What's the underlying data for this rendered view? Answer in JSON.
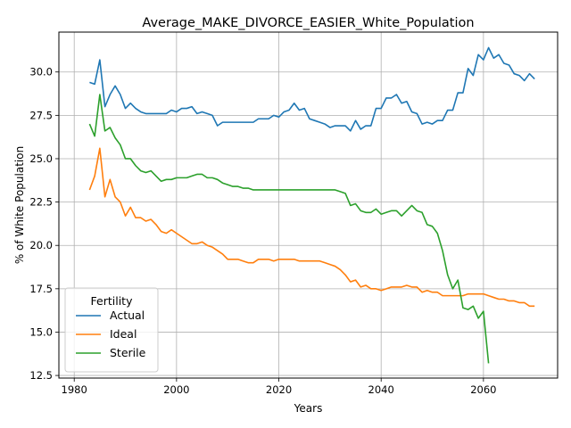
{
  "chart_data": {
    "type": "line",
    "title": "Average_MAKE_DIVORCE_EASIER_White_Population",
    "xlabel": "Years",
    "ylabel": "% of White Population",
    "xlim": [
      1977,
      2074.5
    ],
    "ylim": [
      12.35,
      32.3
    ],
    "xticks": [
      1980,
      2000,
      2020,
      2040,
      2060
    ],
    "xtick_labels": [
      "1980",
      "2000",
      "2020",
      "2040",
      "2060"
    ],
    "yticks": [
      12.5,
      15.0,
      17.5,
      20.0,
      22.5,
      25.0,
      27.5,
      30.0
    ],
    "ytick_labels": [
      "12.5",
      "15.0",
      "17.5",
      "20.0",
      "22.5",
      "25.0",
      "27.5",
      "30.0"
    ],
    "grid": true,
    "legend": {
      "title": "Fertility",
      "position": "lower-left"
    },
    "series": [
      {
        "name": "Actual",
        "color": "#1f77b4",
        "x": [
          1983,
          1984,
          1985,
          1986,
          1987,
          1988,
          1989,
          1990,
          1991,
          1992,
          1993,
          1994,
          1995,
          1996,
          1997,
          1998,
          1999,
          2000,
          2001,
          2002,
          2003,
          2004,
          2005,
          2006,
          2007,
          2008,
          2009,
          2010,
          2011,
          2012,
          2013,
          2014,
          2015,
          2016,
          2017,
          2018,
          2019,
          2020,
          2021,
          2022,
          2023,
          2024,
          2025,
          2026,
          2027,
          2028,
          2029,
          2030,
          2031,
          2032,
          2033,
          2034,
          2035,
          2036,
          2037,
          2038,
          2039,
          2040,
          2041,
          2042,
          2043,
          2044,
          2045,
          2046,
          2047,
          2048,
          2049,
          2050,
          2051,
          2052,
          2053,
          2054,
          2055,
          2056,
          2057,
          2058,
          2059,
          2060,
          2061,
          2062,
          2063,
          2064,
          2065,
          2066,
          2067,
          2068,
          2069,
          2070
        ],
        "y": [
          29.4,
          29.3,
          30.7,
          28.0,
          28.7,
          29.2,
          28.7,
          27.9,
          28.2,
          27.9,
          27.7,
          27.6,
          27.6,
          27.6,
          27.6,
          27.6,
          27.8,
          27.7,
          27.9,
          27.9,
          28.0,
          27.6,
          27.7,
          27.6,
          27.5,
          26.9,
          27.1,
          27.1,
          27.1,
          27.1,
          27.1,
          27.1,
          27.1,
          27.3,
          27.3,
          27.3,
          27.5,
          27.4,
          27.7,
          27.8,
          28.2,
          27.8,
          27.9,
          27.3,
          27.2,
          27.1,
          27.0,
          26.8,
          26.9,
          26.9,
          26.9,
          26.6,
          27.2,
          26.7,
          26.9,
          26.9,
          27.9,
          27.9,
          28.5,
          28.5,
          28.7,
          28.2,
          28.3,
          27.7,
          27.6,
          27.0,
          27.1,
          27.0,
          27.2,
          27.2,
          27.8,
          27.8,
          28.8,
          28.8,
          30.2,
          29.8,
          31.0,
          30.7,
          31.4,
          30.8,
          31.0,
          30.5,
          30.4,
          29.9,
          29.8,
          29.5,
          29.9,
          29.6
        ]
      },
      {
        "name": "Ideal",
        "color": "#ff7f0e",
        "x": [
          1983,
          1984,
          1985,
          1986,
          1987,
          1988,
          1989,
          1990,
          1991,
          1992,
          1993,
          1994,
          1995,
          1996,
          1997,
          1998,
          1999,
          2000,
          2001,
          2002,
          2003,
          2004,
          2005,
          2006,
          2007,
          2008,
          2009,
          2010,
          2011,
          2012,
          2013,
          2014,
          2015,
          2016,
          2017,
          2018,
          2019,
          2020,
          2021,
          2022,
          2023,
          2024,
          2025,
          2026,
          2027,
          2028,
          2029,
          2030,
          2031,
          2032,
          2033,
          2034,
          2035,
          2036,
          2037,
          2038,
          2039,
          2040,
          2041,
          2042,
          2043,
          2044,
          2045,
          2046,
          2047,
          2048,
          2049,
          2050,
          2051,
          2052,
          2053,
          2054,
          2055,
          2056,
          2057,
          2058,
          2059,
          2060,
          2061,
          2062,
          2063,
          2064,
          2065,
          2066,
          2067,
          2068,
          2069,
          2070
        ],
        "y": [
          23.2,
          24.0,
          25.6,
          22.8,
          23.8,
          22.8,
          22.5,
          21.7,
          22.2,
          21.6,
          21.6,
          21.4,
          21.5,
          21.2,
          20.8,
          20.7,
          20.9,
          20.7,
          20.5,
          20.3,
          20.1,
          20.1,
          20.2,
          20.0,
          19.9,
          19.7,
          19.5,
          19.2,
          19.2,
          19.2,
          19.1,
          19.0,
          19.0,
          19.2,
          19.2,
          19.2,
          19.1,
          19.2,
          19.2,
          19.2,
          19.2,
          19.1,
          19.1,
          19.1,
          19.1,
          19.1,
          19.0,
          18.9,
          18.8,
          18.6,
          18.3,
          17.9,
          18.0,
          17.6,
          17.7,
          17.5,
          17.5,
          17.4,
          17.5,
          17.6,
          17.6,
          17.6,
          17.7,
          17.6,
          17.6,
          17.3,
          17.4,
          17.3,
          17.3,
          17.1,
          17.1,
          17.1,
          17.1,
          17.1,
          17.2,
          17.2,
          17.2,
          17.2,
          17.1,
          17.0,
          16.9,
          16.9,
          16.8,
          16.8,
          16.7,
          16.7,
          16.5,
          16.5
        ]
      },
      {
        "name": "Sterile",
        "color": "#2ca02c",
        "x": [
          1983,
          1984,
          1985,
          1986,
          1987,
          1988,
          1989,
          1990,
          1991,
          1992,
          1993,
          1994,
          1995,
          1996,
          1997,
          1998,
          1999,
          2000,
          2001,
          2002,
          2003,
          2004,
          2005,
          2006,
          2007,
          2008,
          2009,
          2010,
          2011,
          2012,
          2013,
          2014,
          2015,
          2016,
          2017,
          2018,
          2019,
          2020,
          2021,
          2022,
          2023,
          2024,
          2025,
          2026,
          2027,
          2028,
          2029,
          2030,
          2031,
          2032,
          2033,
          2034,
          2035,
          2036,
          2037,
          2038,
          2039,
          2040,
          2041,
          2042,
          2043,
          2044,
          2045,
          2046,
          2047,
          2048,
          2049,
          2050,
          2051,
          2052,
          2053,
          2054,
          2055,
          2056,
          2057,
          2058,
          2059,
          2060,
          2061
        ],
        "y": [
          27.0,
          26.3,
          28.7,
          26.6,
          26.8,
          26.2,
          25.8,
          25.0,
          25.0,
          24.6,
          24.3,
          24.2,
          24.3,
          24.0,
          23.7,
          23.8,
          23.8,
          23.9,
          23.9,
          23.9,
          24.0,
          24.1,
          24.1,
          23.9,
          23.9,
          23.8,
          23.6,
          23.5,
          23.4,
          23.4,
          23.3,
          23.3,
          23.2,
          23.2,
          23.2,
          23.2,
          23.2,
          23.2,
          23.2,
          23.2,
          23.2,
          23.2,
          23.2,
          23.2,
          23.2,
          23.2,
          23.2,
          23.2,
          23.2,
          23.1,
          23.0,
          22.3,
          22.4,
          22.0,
          21.9,
          21.9,
          22.1,
          21.8,
          21.9,
          22.0,
          22.0,
          21.7,
          22.0,
          22.3,
          22.0,
          21.9,
          21.2,
          21.1,
          20.7,
          19.7,
          18.3,
          17.5,
          18.0,
          16.4,
          16.3,
          16.5,
          15.8,
          16.2,
          13.2
        ]
      }
    ]
  }
}
